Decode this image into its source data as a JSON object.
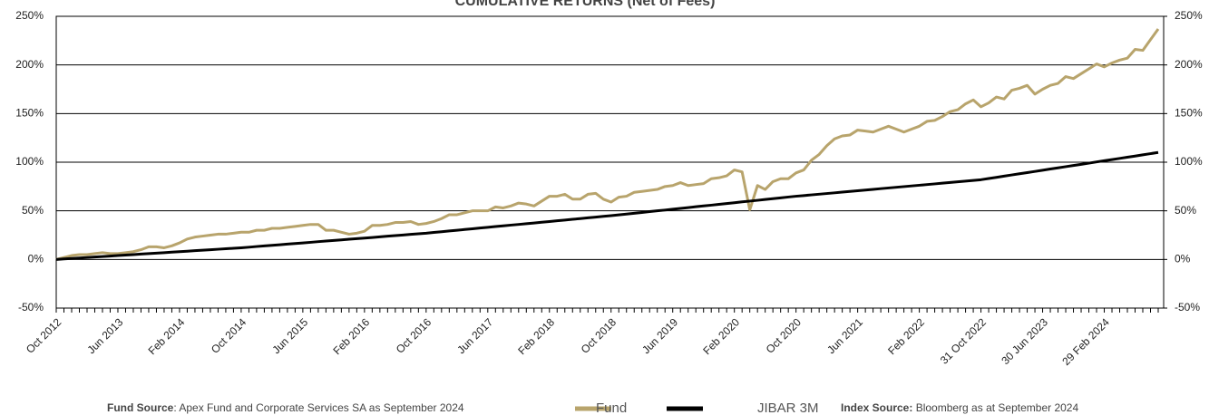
{
  "chart_data": {
    "type": "line",
    "title": "CUMULATIVE RETURNS (Net of Fees)",
    "categories": [
      "Oct 2012",
      null,
      null,
      null,
      null,
      null,
      null,
      null,
      "Jun 2013",
      null,
      null,
      null,
      null,
      null,
      null,
      null,
      "Feb 2014",
      null,
      null,
      null,
      null,
      null,
      null,
      null,
      "Oct 2014",
      null,
      null,
      null,
      null,
      null,
      null,
      null,
      "Jun 2015",
      null,
      null,
      null,
      null,
      null,
      null,
      null,
      "Feb 2016",
      null,
      null,
      null,
      null,
      null,
      null,
      null,
      "Oct 2016",
      null,
      null,
      null,
      null,
      null,
      null,
      null,
      "Jun 2017",
      null,
      null,
      null,
      null,
      null,
      null,
      null,
      "Feb 2018",
      null,
      null,
      null,
      null,
      null,
      null,
      null,
      "Oct 2018",
      null,
      null,
      null,
      null,
      null,
      null,
      null,
      "Jun 2019",
      null,
      null,
      null,
      null,
      null,
      null,
      null,
      "Feb 2020",
      null,
      null,
      null,
      null,
      null,
      null,
      null,
      "Oct 2020",
      null,
      null,
      null,
      null,
      null,
      null,
      null,
      "Jun 2021",
      null,
      null,
      null,
      null,
      null,
      null,
      null,
      "Feb 2022",
      null,
      null,
      null,
      null,
      null,
      null,
      null,
      "31 Oct 2022",
      null,
      null,
      null,
      null,
      null,
      null,
      null,
      "30 Jun 2023",
      null,
      null,
      null,
      null,
      null,
      null,
      null,
      "29 Feb 2024",
      null,
      null,
      null,
      null,
      null,
      null,
      null
    ],
    "series": [
      {
        "name": "Fund",
        "color": "#b8a46c",
        "values": [
          0,
          2,
          4,
          5,
          5,
          6,
          7,
          6,
          6,
          7,
          8,
          10,
          13,
          13,
          12,
          14,
          17,
          21,
          23,
          24,
          25,
          26,
          26,
          27,
          28,
          28,
          30,
          30,
          32,
          32,
          33,
          34,
          35,
          36,
          36,
          30,
          30,
          28,
          26,
          27,
          29,
          35,
          35,
          36,
          38,
          38,
          39,
          36,
          37,
          39,
          42,
          46,
          46,
          48,
          50,
          50,
          50,
          54,
          53,
          55,
          58,
          57,
          55,
          60,
          65,
          65,
          67,
          62,
          62,
          67,
          68,
          62,
          59,
          64,
          65,
          69,
          70,
          71,
          72,
          75,
          76,
          79,
          76,
          77,
          78,
          83,
          84,
          86,
          92,
          90,
          51,
          76,
          72,
          80,
          83,
          83,
          89,
          92,
          102,
          108,
          117,
          124,
          127,
          128,
          133,
          132,
          131,
          134,
          137,
          134,
          131,
          134,
          137,
          142,
          143,
          147,
          152,
          154,
          160,
          164,
          157,
          161,
          167,
          165,
          174,
          176,
          179,
          170,
          175,
          179,
          181,
          188,
          186,
          191,
          196,
          201,
          198,
          202,
          205,
          207,
          216,
          215,
          226,
          237
        ]
      },
      {
        "name": "JIBAR 3M",
        "color": "#000000",
        "values": [
          0,
          0.5,
          1,
          1.5,
          2,
          2.5,
          3,
          3.5,
          4,
          4.5,
          5,
          5.5,
          6,
          6.5,
          7,
          7.5,
          8,
          8.5,
          9,
          9.5,
          10,
          10.5,
          11,
          11.5,
          12,
          12.6,
          13.3,
          13.9,
          14.5,
          15.1,
          15.8,
          16.4,
          17,
          17.6,
          18.3,
          18.9,
          19.5,
          20.1,
          20.8,
          21.4,
          22,
          22.6,
          23.3,
          23.9,
          24.5,
          25.1,
          25.8,
          26.4,
          27,
          27.8,
          28.5,
          29.3,
          30,
          30.8,
          31.5,
          32.3,
          33,
          33.8,
          34.5,
          35.3,
          36,
          36.8,
          37.5,
          38.3,
          39,
          39.8,
          40.5,
          41.3,
          42,
          42.8,
          43.5,
          44.3,
          45,
          45.8,
          46.7,
          47.5,
          48.3,
          49.2,
          50,
          50.8,
          51.7,
          52.5,
          53.3,
          54.2,
          55,
          55.8,
          56.7,
          57.5,
          58.3,
          59.2,
          60,
          60.8,
          61.7,
          62.5,
          63.3,
          64.2,
          65,
          65.7,
          66.4,
          67.1,
          67.8,
          68.5,
          69.3,
          70,
          70.7,
          71.4,
          72.1,
          72.8,
          73.5,
          74.2,
          74.9,
          75.6,
          76.3,
          77,
          77.7,
          78.5,
          79.2,
          79.9,
          80.6,
          81.3,
          82,
          83.2,
          84.4,
          85.7,
          86.9,
          88.1,
          89.3,
          90.5,
          91.7,
          93,
          94.2,
          95.4,
          96.6,
          97.8,
          99,
          100.3,
          101.5,
          102.7,
          103.9,
          105.1,
          106.3,
          107.6,
          108.8,
          110
        ]
      }
    ],
    "ylim": [
      -50,
      250
    ],
    "yticks": [
      {
        "value": -50,
        "label": "-50%"
      },
      {
        "value": 0,
        "label": "0%"
      },
      {
        "value": 50,
        "label": "50%"
      },
      {
        "value": 100,
        "label": "100%"
      },
      {
        "value": 150,
        "label": "150%"
      },
      {
        "value": 200,
        "label": "200%"
      },
      {
        "value": 250,
        "label": "250%"
      }
    ],
    "y2lim": [
      -50,
      250
    ],
    "y2ticks": [
      {
        "value": -50,
        "label": "-50%"
      },
      {
        "value": 0,
        "label": "0%"
      },
      {
        "value": 50,
        "label": "50%"
      },
      {
        "value": 100,
        "label": "100%"
      },
      {
        "value": 150,
        "label": "150%"
      },
      {
        "value": 200,
        "label": "200%"
      },
      {
        "value": 250,
        "label": "250%"
      }
    ],
    "grid": true,
    "legend": "bottom",
    "fund_source": {
      "label": "Fund Source",
      "text": ": Apex Fund and Corporate Services SA as September 2024"
    },
    "index_source": {
      "label": "Index Source:",
      "text": " Bloomberg as at September 2024"
    }
  }
}
